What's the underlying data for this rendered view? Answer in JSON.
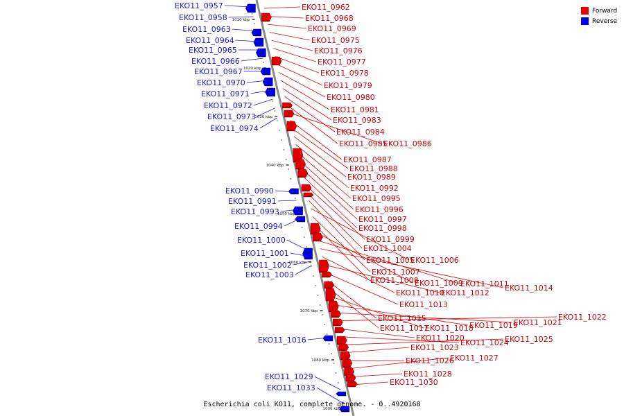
{
  "legend": {
    "forward": {
      "label": "Forward",
      "color": "#ee0000"
    },
    "reverse": {
      "label": "Reverse",
      "color": "#0000ee"
    }
  },
  "caption": "Escherichia coli KO11, complete genome. - 0..4920168",
  "ticks": [
    "1010 kbp",
    "1020 kbp",
    "1030 kbp",
    "1040 kbp",
    "1050 kbp",
    "1060 kbp",
    "1070 kbp",
    "1080 kbp",
    "1090 kbp"
  ],
  "forward_genes": [
    "EKO11_0962",
    "EKO11_0968",
    "EKO11_0969",
    "EKO11_0975",
    "EKO11_0976",
    "EKO11_0977",
    "EKO11_0978",
    "EKO11_0979",
    "EKO11_0980",
    "EKO11_0981",
    "EKO11_0983",
    "EKO11_0984",
    "EKO11_0985",
    "EKO11_0986",
    "EKO11_0987",
    "EKO11_0988",
    "EKO11_0989",
    "EKO11_0992",
    "EKO11_0995",
    "EKO11_0996",
    "EKO11_0997",
    "EKO11_0998",
    "EKO11_0999",
    "EKO11_1004",
    "EKO11_1005",
    "EKO11_1006",
    "EKO11_1007",
    "EKO11_1008",
    "EKO11_1009",
    "EKO11_1011",
    "EKO11_1014",
    "EKO11_1010",
    "EKO11_1012",
    "EKO11_1013",
    "EKO11_1015",
    "EKO11_1017",
    "EKO11_1018",
    "EKO11_1019",
    "EKO11_1021",
    "EKO11_1022",
    "EKO11_1020",
    "EKO11_1024",
    "EKO11_1025",
    "EKO11_1023",
    "EKO11_1026",
    "EKO11_1027",
    "EKO11_1028",
    "EKO11_1030"
  ],
  "reverse_genes": [
    "EKO11_0957",
    "EKO11_0958",
    "EKO11_0963",
    "EKO11_0964",
    "EKO11_0965",
    "EKO11_0966",
    "EKO11_0967",
    "EKO11_0970",
    "EKO11_0971",
    "EKO11_0972",
    "EKO11_0973",
    "EKO11_0974",
    "EKO11_0990",
    "EKO11_0991",
    "EKO11_0993",
    "EKO11_0994",
    "EKO11_1000",
    "EKO11_1001",
    "EKO11_1002",
    "EKO11_1003",
    "EKO11_1016",
    "EKO11_1029",
    "EKO11_1033"
  ]
}
